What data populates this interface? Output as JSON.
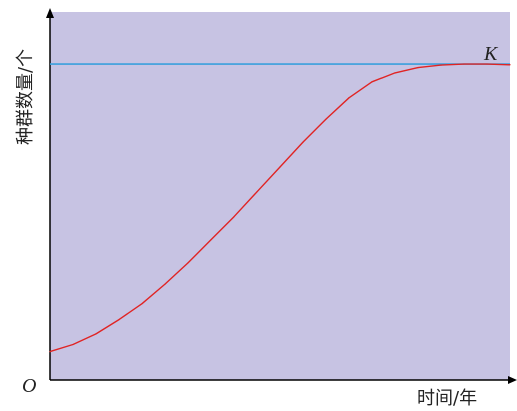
{
  "chart_data": {
    "type": "line",
    "xlabel": "时间/年",
    "ylabel": "种群数量/个",
    "origin_label": "O",
    "k_label": "K",
    "xlim": [
      0,
      100
    ],
    "ylim": [
      0,
      100
    ],
    "series": [
      {
        "x": [
          0,
          5,
          10,
          15,
          20,
          25,
          30,
          35,
          40,
          45,
          50,
          55,
          60,
          65,
          70,
          75,
          80,
          85,
          90,
          95,
          100
        ],
        "y": [
          8,
          10,
          13,
          17,
          21.5,
          27,
          33,
          39.5,
          46,
          53,
          60,
          67,
          73.5,
          79.5,
          84,
          86.5,
          88,
          88.7,
          89,
          89,
          88.8
        ]
      }
    ],
    "reference_lines": [
      {
        "y": 89
      }
    ],
    "colors": {
      "background": "#c7c3e3",
      "curve": "#e02424",
      "k_line": "#3aa0dc",
      "axis": "#000000"
    }
  }
}
